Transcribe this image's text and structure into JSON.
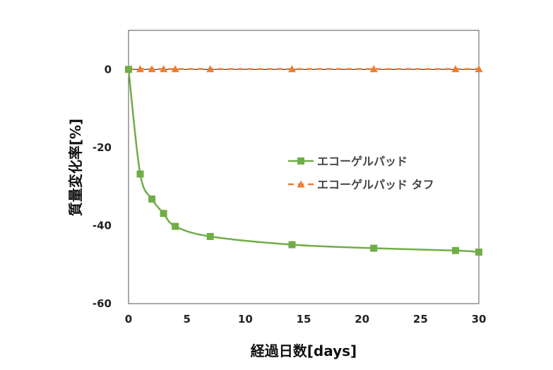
{
  "chart_data": {
    "type": "line",
    "xlabel": "経過日数[days]",
    "ylabel": "質量変化率[%]",
    "xlim": [
      0,
      30
    ],
    "ylim": [
      -60,
      10
    ],
    "xticks": [
      0,
      5,
      10,
      15,
      20,
      25,
      30
    ],
    "yticks": [
      0,
      -20,
      -40,
      -60
    ],
    "grid": false,
    "legend_position": "right",
    "series": [
      {
        "name": "エコーゲルパッド",
        "color": "#70ad47",
        "marker": "square",
        "line": "solid",
        "x": [
          0,
          1,
          2,
          3,
          4,
          7,
          14,
          21,
          28,
          30
        ],
        "y": [
          0,
          -26.8,
          -33.2,
          -36.9,
          -40.2,
          -42.8,
          -44.9,
          -45.8,
          -46.4,
          -46.8
        ]
      },
      {
        "name": "エコーゲルパッド タフ",
        "color": "#ed7d31",
        "marker": "triangle",
        "line": "dashed",
        "x": [
          0,
          1,
          2,
          3,
          4,
          7,
          14,
          21,
          28,
          30
        ],
        "y": [
          0,
          0.1,
          0.1,
          0.1,
          0.1,
          0.1,
          0.1,
          0.1,
          0.1,
          0.1
        ]
      }
    ]
  }
}
